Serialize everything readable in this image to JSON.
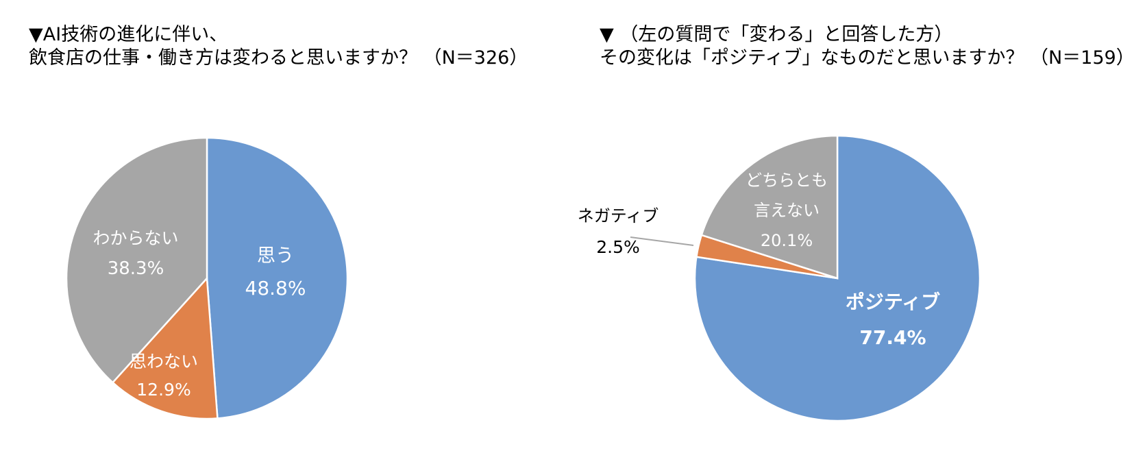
{
  "chart_data": [
    {
      "type": "pie",
      "title_lines": [
        "▼AI技術の進化に伴い、",
        "飲食店の仕事・働き方は変わると思いますか？ （N＝326）"
      ],
      "categories": [
        "思う",
        "思わない",
        "わからない"
      ],
      "values": [
        48.8,
        12.9,
        38.3
      ],
      "value_labels": [
        "48.8%",
        "12.9%",
        "38.3%"
      ],
      "colors": [
        "#6a98d0",
        "#e0824a",
        "#a6a6a6"
      ]
    },
    {
      "type": "pie",
      "title_lines": [
        "▼ （左の質問で「変わる」と回答した方）",
        "その変化は「ポジティブ」なものだと思いますか？ （N＝159）"
      ],
      "categories": [
        "ポジティブ",
        "ネガティブ",
        "どちらとも言えない"
      ],
      "category_label_lines": [
        [
          "ポジティブ"
        ],
        [
          "ネガティブ"
        ],
        [
          "どちらとも",
          "言えない"
        ]
      ],
      "values": [
        77.4,
        2.5,
        20.1
      ],
      "value_labels": [
        "77.4%",
        "2.5%",
        "20.1%"
      ],
      "colors": [
        "#6a98d0",
        "#e0824a",
        "#a6a6a6"
      ]
    }
  ]
}
